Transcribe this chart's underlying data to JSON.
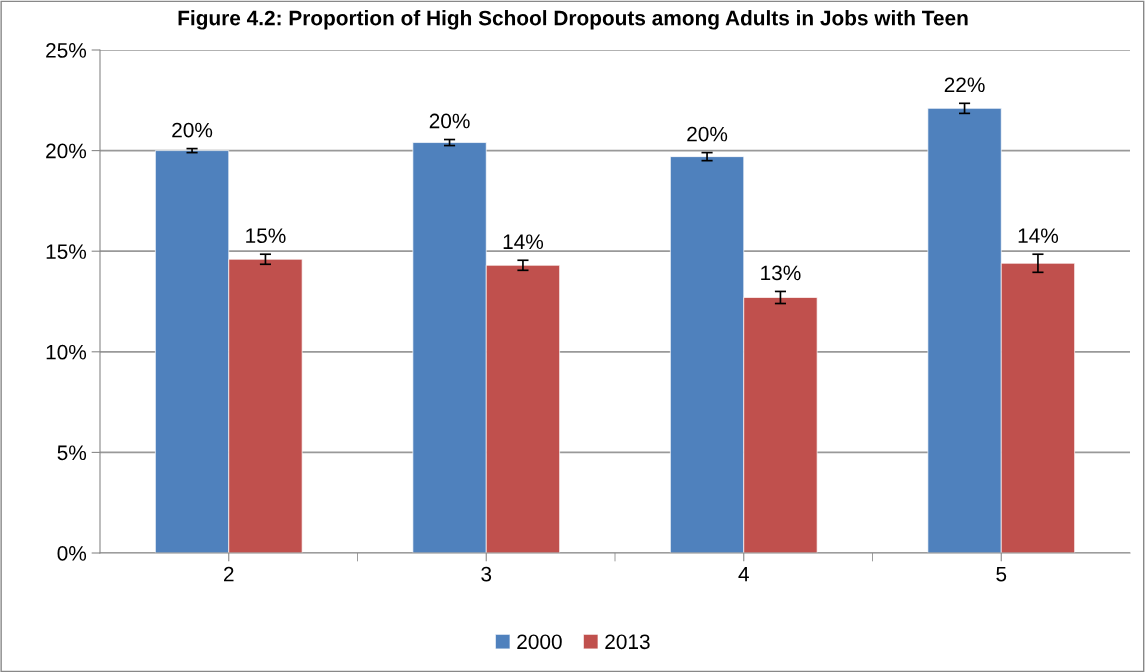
{
  "chart_data": {
    "type": "bar",
    "title": "Figure 4.2: Proportion of High School Dropouts among Adults in Jobs with Teen",
    "categories": [
      "2",
      "3",
      "4",
      "5"
    ],
    "series": [
      {
        "name": "2000",
        "color": "#4f81bd",
        "values": [
          20.0,
          20.4,
          19.7,
          22.1
        ],
        "errors": [
          0.1,
          0.15,
          0.2,
          0.25
        ],
        "value_labels": [
          "20%",
          "20%",
          "20%",
          "22%"
        ]
      },
      {
        "name": "2013",
        "color": "#c0504d",
        "values": [
          14.6,
          14.3,
          12.7,
          14.4
        ],
        "errors": [
          0.25,
          0.25,
          0.3,
          0.45
        ],
        "value_labels": [
          "15%",
          "14%",
          "13%",
          "14%"
        ]
      }
    ],
    "ylim": [
      0,
      25
    ],
    "yticks": [
      {
        "value": 0,
        "label": "0%"
      },
      {
        "value": 5,
        "label": "5%"
      },
      {
        "value": 10,
        "label": "10%"
      },
      {
        "value": 15,
        "label": "15%"
      },
      {
        "value": 20,
        "label": "20%"
      },
      {
        "value": 25,
        "label": "25%"
      }
    ],
    "grid": "y",
    "legend": "bottom"
  }
}
